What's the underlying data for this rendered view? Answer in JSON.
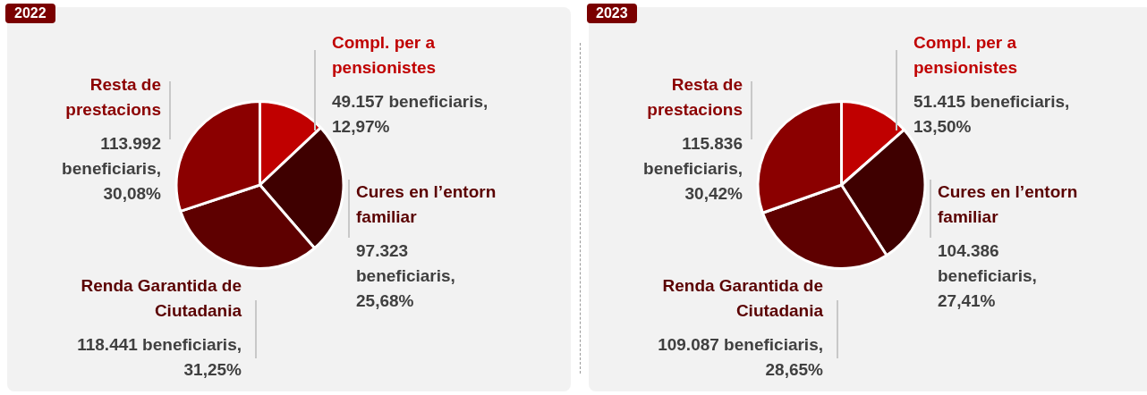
{
  "chart_data": [
    {
      "type": "pie",
      "title": "2022",
      "categories": [
        "Compl. per a pensionistes",
        "Cures en l’entorn familiar",
        "Renda Garantida de Ciutadania",
        "Resta de prestacions"
      ],
      "values": [
        49157,
        97323,
        118441,
        113992
      ],
      "colors": [
        "#c00000",
        "#3f0000",
        "#5e0000",
        "#8b0000"
      ],
      "value_labels": [
        "49.157 beneficiaris, 12,97%",
        "97.323 beneficiaris, 25,68%",
        "118.441 beneficiaris, 31,25%",
        "113.992 beneficiaris, 30,08%"
      ],
      "legend": false
    },
    {
      "type": "pie",
      "title": "2023",
      "categories": [
        "Compl. per a pensionistes",
        "Cures en l’entorn familiar",
        "Renda Garantida de Ciutadania",
        "Resta de prestacions"
      ],
      "values": [
        51415,
        104386,
        109087,
        115836
      ],
      "colors": [
        "#c00000",
        "#3f0000",
        "#5e0000",
        "#8b0000"
      ],
      "value_labels": [
        "51.415 beneficiaris, 13,50%",
        "104.386 beneficiaris, 27,41%",
        "109.087 beneficiaris, 28,65%",
        "115.836 beneficiaris, 30,42%"
      ],
      "legend": false
    }
  ]
}
